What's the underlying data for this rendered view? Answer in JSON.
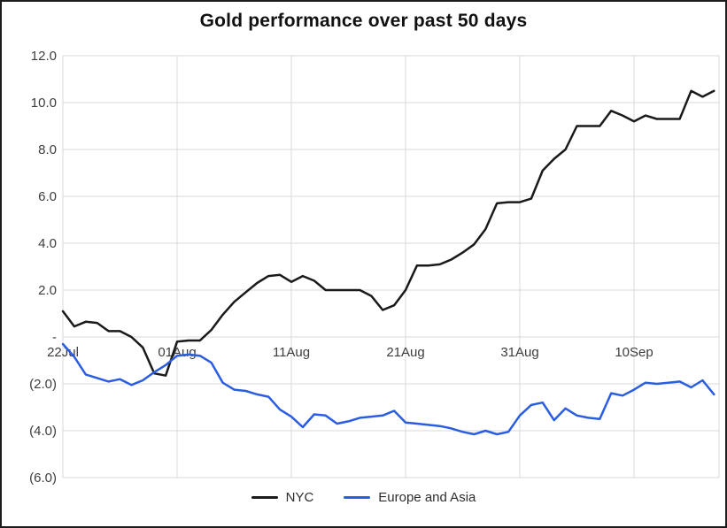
{
  "title": "Gold performance over past 50 days",
  "legend": [
    {
      "label": "NYC",
      "color": "#1a1a1a"
    },
    {
      "label": "Europe and Asia",
      "color": "#2a5de2"
    }
  ],
  "colors": {
    "series_nyc": "#1a1a1a",
    "series_europe_asia": "#2a5de2",
    "gridline": "#d9d9d9",
    "tick_text": "#3d3d3d",
    "frame": "#1c1c1c",
    "background": "#ffffff"
  },
  "chart_data": {
    "type": "line",
    "title": "Gold performance over past 50 days",
    "xlabel": "",
    "ylabel": "",
    "ylim": [
      -6,
      12
    ],
    "y_tick_step": 2,
    "grid": true,
    "legend_position": "bottom",
    "y_ticks": [
      {
        "value": 12,
        "label": "12.0"
      },
      {
        "value": 10,
        "label": "10.0"
      },
      {
        "value": 8,
        "label": "8.0"
      },
      {
        "value": 6,
        "label": "6.0"
      },
      {
        "value": 4,
        "label": "4.0"
      },
      {
        "value": 2,
        "label": "2.0"
      },
      {
        "value": 0,
        "label": "-"
      },
      {
        "value": -2,
        "label": "(2.0)"
      },
      {
        "value": -4,
        "label": "(4.0)"
      },
      {
        "value": -6,
        "label": "(6.0)"
      }
    ],
    "x_ticks": [
      {
        "index": 0,
        "label": "22Jul"
      },
      {
        "index": 10,
        "label": "01Aug"
      },
      {
        "index": 20,
        "label": "11Aug"
      },
      {
        "index": 30,
        "label": "21Aug"
      },
      {
        "index": 40,
        "label": "31Aug"
      },
      {
        "index": 50,
        "label": "10Sep"
      }
    ],
    "categories": [
      "22Jul",
      "23Jul",
      "24Jul",
      "25Jul",
      "26Jul",
      "27Jul",
      "28Jul",
      "29Jul",
      "30Jul",
      "31Jul",
      "01Aug",
      "02Aug",
      "03Aug",
      "04Aug",
      "05Aug",
      "06Aug",
      "07Aug",
      "08Aug",
      "09Aug",
      "10Aug",
      "11Aug",
      "12Aug",
      "13Aug",
      "14Aug",
      "15Aug",
      "16Aug",
      "17Aug",
      "18Aug",
      "19Aug",
      "20Aug",
      "21Aug",
      "22Aug",
      "23Aug",
      "24Aug",
      "25Aug",
      "26Aug",
      "27Aug",
      "28Aug",
      "29Aug",
      "30Aug",
      "31Aug",
      "01Sep",
      "02Sep",
      "03Sep",
      "04Sep",
      "05Sep",
      "06Sep",
      "07Sep",
      "08Sep",
      "09Sep",
      "10Sep",
      "11Sep",
      "12Sep",
      "13Sep",
      "14Sep",
      "15Sep",
      "16Sep",
      "17Sep"
    ],
    "series": [
      {
        "name": "NYC",
        "color": "#1a1a1a",
        "values": [
          1.1,
          0.45,
          0.65,
          0.6,
          0.25,
          0.25,
          0.0,
          -0.45,
          -1.55,
          -1.65,
          -0.2,
          -0.15,
          -0.15,
          0.3,
          0.95,
          1.5,
          1.9,
          2.3,
          2.6,
          2.65,
          2.35,
          2.6,
          2.4,
          2.0,
          2.0,
          2.0,
          2.0,
          1.75,
          1.15,
          1.35,
          2.0,
          3.05,
          3.05,
          3.1,
          3.3,
          3.6,
          3.95,
          4.6,
          5.7,
          5.75,
          5.75,
          5.9,
          7.1,
          7.6,
          8.0,
          9.0,
          9.0,
          9.0,
          9.65,
          9.45,
          9.2,
          9.45,
          9.3,
          9.3,
          9.3,
          10.5,
          10.25,
          10.5
        ]
      },
      {
        "name": "Europe and Asia",
        "color": "#2a5de2",
        "values": [
          -0.3,
          -0.85,
          -1.6,
          -1.75,
          -1.9,
          -1.8,
          -2.05,
          -1.85,
          -1.5,
          -1.2,
          -0.8,
          -0.75,
          -0.8,
          -1.1,
          -1.95,
          -2.25,
          -2.3,
          -2.45,
          -2.55,
          -3.1,
          -3.4,
          -3.85,
          -3.3,
          -3.35,
          -3.7,
          -3.6,
          -3.45,
          -3.4,
          -3.35,
          -3.15,
          -3.65,
          -3.7,
          -3.75,
          -3.8,
          -3.9,
          -4.05,
          -4.15,
          -4.0,
          -4.15,
          -4.05,
          -3.35,
          -2.9,
          -2.8,
          -3.55,
          -3.05,
          -3.35,
          -3.45,
          -3.5,
          -2.4,
          -2.5,
          -2.25,
          -1.95,
          -2.0,
          -1.95,
          -1.9,
          -2.15,
          -1.85,
          -2.45
        ]
      }
    ]
  }
}
